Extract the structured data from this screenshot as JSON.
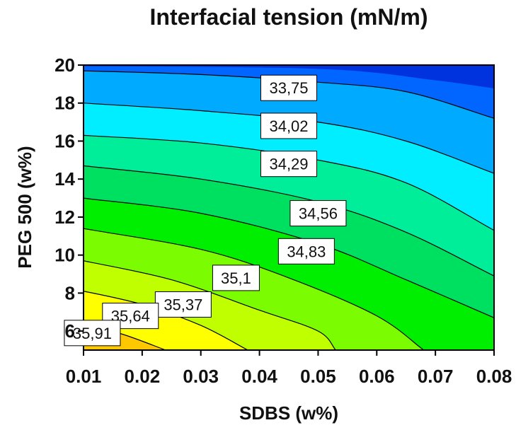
{
  "chart_data": {
    "type": "contour",
    "title": "Interfacial tension (mN/m)",
    "xlabel": "SDBS (w%)",
    "ylabel": "PEG 500 (w%)",
    "xlim": [
      0.01,
      0.08
    ],
    "ylim": [
      5,
      20
    ],
    "x_ticks": [
      "0.01",
      "0.02",
      "0.03",
      "0.04",
      "0.05",
      "0.06",
      "0.07",
      "0.08"
    ],
    "y_ticks": [
      "6",
      "8",
      "10",
      "12",
      "14",
      "16",
      "18",
      "20"
    ],
    "contour_levels": [
      {
        "value": 33.75,
        "label": "33,75",
        "label_at": [
          0.045,
          18.8
        ]
      },
      {
        "value": 34.02,
        "label": "34,02",
        "label_at": [
          0.045,
          16.8
        ]
      },
      {
        "value": 34.29,
        "label": "34,29",
        "label_at": [
          0.045,
          14.8
        ]
      },
      {
        "value": 34.56,
        "label": "34,56",
        "label_at": [
          0.05,
          12.2
        ]
      },
      {
        "value": 34.83,
        "label": "34,83",
        "label_at": [
          0.048,
          10.2
        ]
      },
      {
        "value": 35.1,
        "label": "35,1",
        "label_at": [
          0.036,
          8.8
        ]
      },
      {
        "value": 35.37,
        "label": "35,37",
        "label_at": [
          0.027,
          7.4
        ]
      },
      {
        "value": 35.64,
        "label": "35,64",
        "label_at": [
          0.018,
          6.8
        ]
      },
      {
        "value": 35.91,
        "label": "35,91",
        "label_at": [
          0.0115,
          5.9
        ]
      }
    ],
    "contour_lines": [
      {
        "value": 33.75,
        "points": [
          [
            0.01,
            19.7
          ],
          [
            0.03,
            19.5
          ],
          [
            0.05,
            19.1
          ],
          [
            0.065,
            18.6
          ],
          [
            0.08,
            17.2
          ]
        ]
      },
      {
        "value": 34.02,
        "points": [
          [
            0.01,
            18.0
          ],
          [
            0.03,
            17.6
          ],
          [
            0.05,
            17.0
          ],
          [
            0.065,
            16.0
          ],
          [
            0.08,
            14.3
          ]
        ]
      },
      {
        "value": 34.29,
        "points": [
          [
            0.01,
            16.3
          ],
          [
            0.03,
            15.9
          ],
          [
            0.05,
            15.0
          ],
          [
            0.065,
            13.8
          ],
          [
            0.08,
            11.3
          ]
        ]
      },
      {
        "value": 34.56,
        "points": [
          [
            0.01,
            14.7
          ],
          [
            0.03,
            14.0
          ],
          [
            0.05,
            12.8
          ],
          [
            0.065,
            11.2
          ],
          [
            0.08,
            8.9
          ]
        ]
      },
      {
        "value": 34.83,
        "points": [
          [
            0.01,
            13.0
          ],
          [
            0.03,
            12.2
          ],
          [
            0.05,
            10.6
          ],
          [
            0.065,
            8.7
          ],
          [
            0.08,
            6.7
          ]
        ]
      },
      {
        "value": 35.1,
        "points": [
          [
            0.01,
            11.4
          ],
          [
            0.03,
            10.3
          ],
          [
            0.045,
            8.8
          ],
          [
            0.06,
            6.8
          ],
          [
            0.068,
            5.0
          ]
        ]
      },
      {
        "value": 35.37,
        "points": [
          [
            0.01,
            9.7
          ],
          [
            0.025,
            8.7
          ],
          [
            0.04,
            7.1
          ],
          [
            0.05,
            6.0
          ],
          [
            0.053,
            5.0
          ]
        ]
      },
      {
        "value": 35.64,
        "points": [
          [
            0.01,
            8.1
          ],
          [
            0.02,
            7.4
          ],
          [
            0.03,
            6.3
          ],
          [
            0.038,
            5.0
          ]
        ]
      },
      {
        "value": 35.91,
        "points": [
          [
            0.01,
            6.4
          ],
          [
            0.017,
            5.8
          ],
          [
            0.024,
            5.0
          ]
        ]
      }
    ],
    "fill_colors": [
      "#e8500a",
      "#ff9a00",
      "#ffc800",
      "#ffff00",
      "#bfff00",
      "#7cfc00",
      "#00ee00",
      "#00e060",
      "#00ee99",
      "#00eeff",
      "#00aaff",
      "#0066ff",
      "#0033dd"
    ],
    "legend": "none",
    "grid": false
  }
}
